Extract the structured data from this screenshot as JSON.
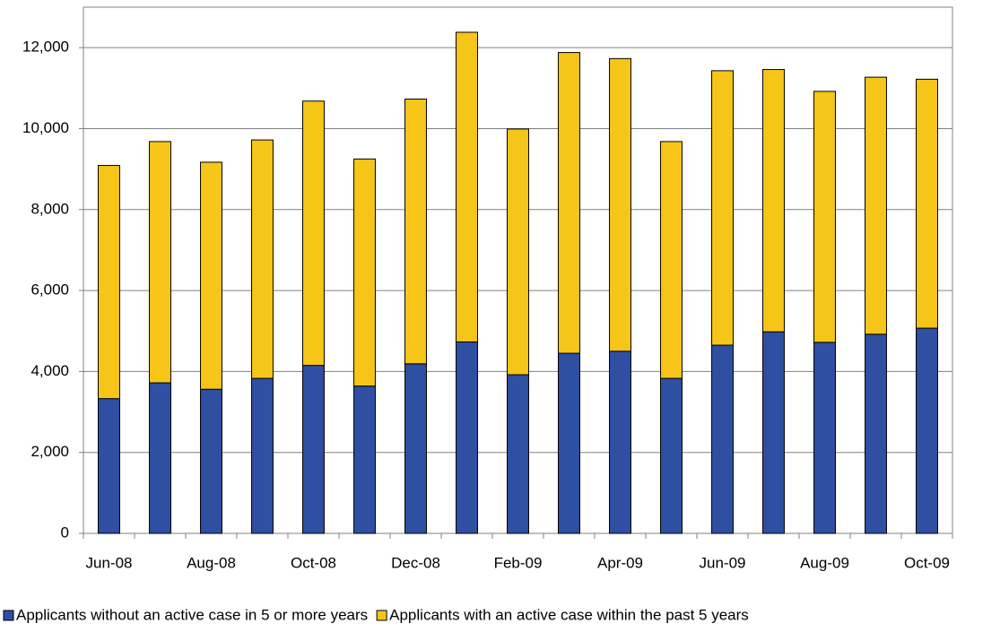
{
  "chart_data": {
    "type": "stacked-bar",
    "categories": [
      "Jun-08",
      null,
      "Aug-08",
      null,
      "Oct-08",
      null,
      "Dec-08",
      null,
      "Feb-09",
      null,
      "Apr-09",
      null,
      "Jun-09",
      null,
      "Aug-09",
      null,
      "Oct-09"
    ],
    "series": [
      {
        "name": "Applicants without an active case in 5 or more years",
        "color": "#2f4fa2",
        "values": [
          3330,
          3720,
          3560,
          3830,
          4150,
          3640,
          4190,
          4730,
          3920,
          4450,
          4500,
          3830,
          4650,
          4980,
          4720,
          4920,
          5070
        ]
      },
      {
        "name": "Applicants with an active case within the past 5 years",
        "color": "#f5c518",
        "values": [
          5760,
          5960,
          5610,
          5890,
          6530,
          5610,
          6540,
          7650,
          6070,
          7430,
          7230,
          5850,
          6780,
          6480,
          6200,
          6350,
          6150
        ]
      }
    ],
    "ylim": [
      0,
      13000
    ],
    "yticks": [
      0,
      {
        "value": 2000,
        "label": "2,000"
      },
      {
        "value": 4000,
        "label": "4,000"
      },
      {
        "value": 6000,
        "label": "6,000"
      },
      {
        "value": 8000,
        "label": "8,000"
      },
      {
        "value": 10000,
        "label": "10,000"
      },
      {
        "value": 12000,
        "label": "12,000"
      }
    ],
    "grid": true,
    "legend": "bottom"
  }
}
